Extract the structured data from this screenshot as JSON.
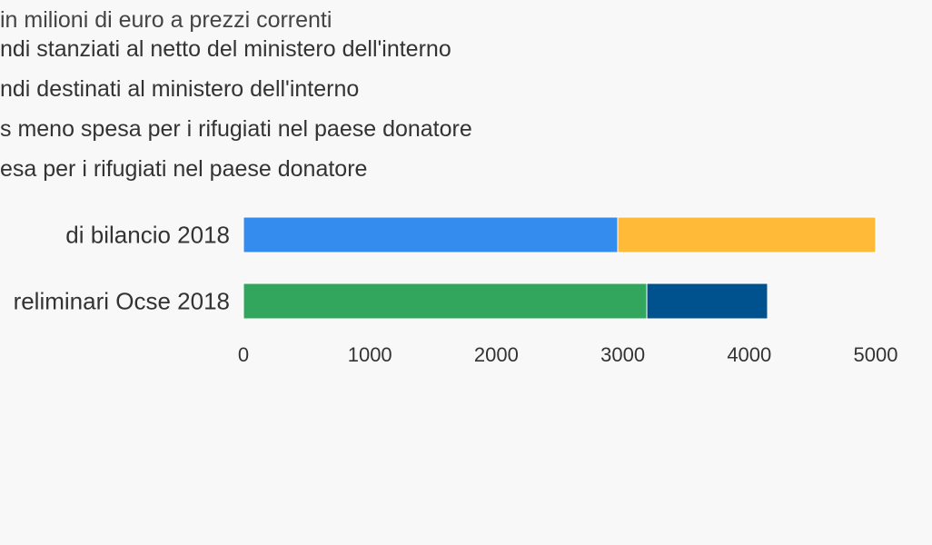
{
  "chart_data": {
    "type": "bar",
    "orientation": "horizontal",
    "stacked": true,
    "subtitle": "in milioni di euro a prezzi correnti",
    "legend_position": "top-left",
    "categories": [
      "di bilancio 2018",
      "reliminari Ocse 2018"
    ],
    "series": [
      {
        "name": "ndi stanziati al netto del ministero dell'interno",
        "color": "#338cee",
        "values": [
          2960,
          null
        ]
      },
      {
        "name": "ndi destinati al ministero dell'interno",
        "color": "#ffbb38",
        "values": [
          2040,
          null
        ]
      },
      {
        "name": "s meno spesa per i rifugiati nel paese donatore",
        "color": "#32a65c",
        "values": [
          null,
          3190
        ]
      },
      {
        "name": "esa per i rifugiati nel paese donatore",
        "color": "#00528f",
        "values": [
          null,
          955
        ]
      }
    ],
    "xlim": [
      0,
      5000
    ],
    "xticks": [
      0,
      1000,
      2000,
      3000,
      4000,
      5000
    ],
    "grid": false
  }
}
